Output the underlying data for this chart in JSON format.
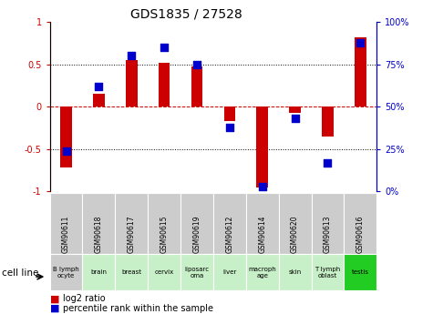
{
  "title": "GDS1835 / 27528",
  "samples": [
    "GSM90611",
    "GSM90618",
    "GSM90617",
    "GSM90615",
    "GSM90619",
    "GSM90612",
    "GSM90614",
    "GSM90620",
    "GSM90613",
    "GSM90616"
  ],
  "cell_lines": [
    "B lymph\nocyte",
    "brain",
    "breast",
    "cervix",
    "liposarc\noma",
    "liver",
    "macroph\nage",
    "skin",
    "T lymph\noblast",
    "testis"
  ],
  "cell_line_colors": [
    "#cccccc",
    "#c8f0c8",
    "#c8f0c8",
    "#c8f0c8",
    "#c8f0c8",
    "#c8f0c8",
    "#c8f0c8",
    "#c8f0c8",
    "#c8f0c8",
    "#22cc22"
  ],
  "log2_ratio": [
    -0.72,
    0.15,
    0.55,
    0.52,
    0.48,
    -0.17,
    -0.95,
    -0.07,
    -0.35,
    0.82
  ],
  "percentile_rank": [
    24,
    62,
    80,
    85,
    75,
    38,
    3,
    43,
    17,
    88
  ],
  "bar_color": "#cc0000",
  "dot_color": "#0000cc",
  "left_ylim": [
    -1,
    1
  ],
  "right_ylim": [
    0,
    100
  ],
  "left_yticks": [
    -1,
    -0.5,
    0,
    0.5,
    1
  ],
  "right_yticks": [
    0,
    25,
    50,
    75,
    100
  ],
  "left_ytick_labels": [
    "-1",
    "-0.5",
    "0",
    "0.5",
    "1"
  ],
  "right_ytick_labels": [
    "0%",
    "25%",
    "50%",
    "75%",
    "100%"
  ],
  "bar_width": 0.35,
  "dot_size": 35
}
